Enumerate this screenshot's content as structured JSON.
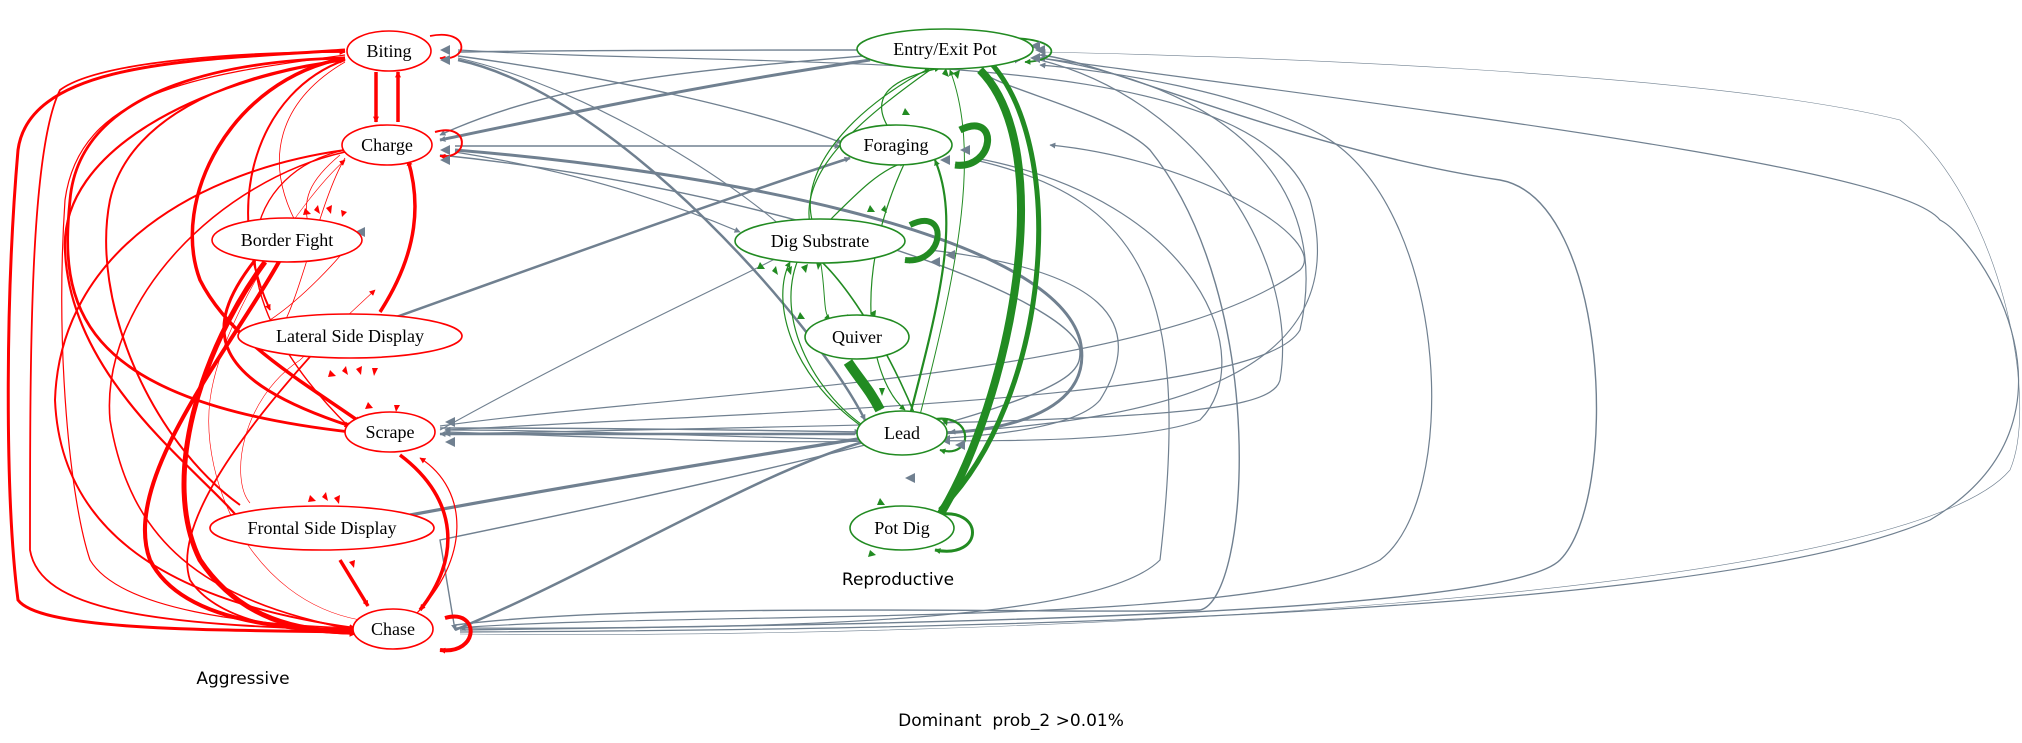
{
  "colors": {
    "aggressive": "#ff0000",
    "reproductive": "#228b22",
    "cross": "#708090",
    "background": "#ffffff"
  },
  "nodes": [
    {
      "id": "biting",
      "label": "Biting",
      "group": "aggressive"
    },
    {
      "id": "charge",
      "label": "Charge",
      "group": "aggressive"
    },
    {
      "id": "border_fight",
      "label": "Border Fight",
      "group": "aggressive"
    },
    {
      "id": "lateral",
      "label": "Lateral Side Display",
      "group": "aggressive"
    },
    {
      "id": "scrape",
      "label": "Scrape",
      "group": "aggressive"
    },
    {
      "id": "frontal",
      "label": "Frontal Side Display",
      "group": "aggressive"
    },
    {
      "id": "chase",
      "label": "Chase",
      "group": "aggressive"
    },
    {
      "id": "entry",
      "label": "Entry/Exit Pot",
      "group": "reproductive"
    },
    {
      "id": "foraging",
      "label": "Foraging",
      "group": "reproductive"
    },
    {
      "id": "dig",
      "label": "Dig Substrate",
      "group": "reproductive"
    },
    {
      "id": "quiver",
      "label": "Quiver",
      "group": "reproductive"
    },
    {
      "id": "lead",
      "label": "Lead",
      "group": "reproductive"
    },
    {
      "id": "potdig",
      "label": "Pot Dig",
      "group": "reproductive"
    }
  ],
  "groups": {
    "aggressive": "Aggressive",
    "reproductive": "Reproductive"
  },
  "caption": "Dominant  prob_2 >0.01%"
}
